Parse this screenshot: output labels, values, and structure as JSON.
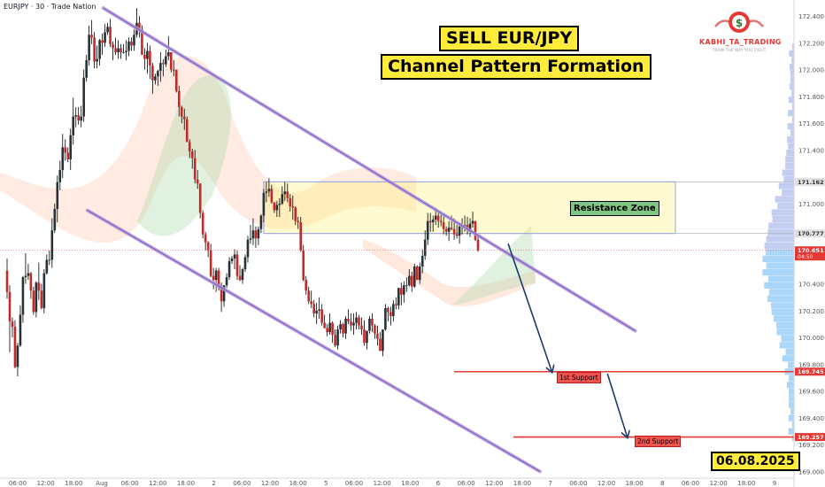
{
  "chart_data": {
    "type": "candlestick",
    "symbol_header": "EURJPY · 30 · Trade Nation",
    "title": "SELL EUR/JPY",
    "subtitle": "Channel Pattern Formation",
    "date_stamp": "06.08.2025",
    "brand": {
      "name": "KABHI_TA_TRADING",
      "tagline": "TRAIN THE WAY YOU FIGHT"
    },
    "y_axis": {
      "ticks": [
        "172.400",
        "172.200",
        "172.000",
        "171.800",
        "171.600",
        "171.400",
        "171.000",
        "170.400",
        "170.200",
        "170.000",
        "169.800",
        "169.600",
        "169.400",
        "169.200",
        "169.000"
      ],
      "ylim": [
        168.95,
        172.52
      ]
    },
    "x_axis": {
      "ticks": [
        "06:00",
        "12:00",
        "18:00",
        "Aug",
        "06:00",
        "12:00",
        "18:00",
        "2",
        "06:00",
        "12:00",
        "18:00",
        "5",
        "06:00",
        "12:00",
        "18:00",
        "6",
        "06:00",
        "12:00",
        "18:00",
        "7",
        "06:00",
        "12:00",
        "18:00",
        "8",
        "06:00",
        "12:00",
        "18:00",
        "9"
      ]
    },
    "price_tags": [
      {
        "value": "171.162",
        "color": "#e0e0e0",
        "text_color": "#333333"
      },
      {
        "value": "170.777",
        "color": "#e0e0e0",
        "text_color": "#333333"
      },
      {
        "value": "170.651",
        "sub": "04:50",
        "color": "#e53935",
        "text_color": "#ffffff"
      },
      {
        "value": "169.745",
        "color": "#e53935",
        "text_color": "#ffffff"
      },
      {
        "value": "169.257",
        "color": "#e53935",
        "text_color": "#ffffff"
      }
    ],
    "annotations": {
      "resistance_zone": {
        "label": "Resistance Zone",
        "top": 171.162,
        "bottom": 170.777
      },
      "support_1": {
        "label": "1st Support",
        "price": 169.745
      },
      "support_2": {
        "label": "2nd Support",
        "price": 169.257
      }
    },
    "channel": {
      "upper": [
        [
          0.13,
          172.46
        ],
        [
          0.8,
          170.05
        ]
      ],
      "lower": [
        [
          0.11,
          170.95
        ],
        [
          0.68,
          169.0
        ]
      ]
    },
    "forecast_path": [
      [
        0.64,
        170.7
      ],
      [
        0.695,
        169.745
      ],
      [
        0.765,
        169.73
      ],
      [
        0.79,
        169.257
      ]
    ],
    "candles": [
      [
        170.5,
        170.59,
        170.29,
        170.34
      ],
      [
        170.34,
        170.39,
        169.89,
        170.12
      ],
      [
        170.12,
        170.15,
        170.0,
        170.08
      ],
      [
        170.08,
        170.13,
        169.77,
        169.78
      ],
      [
        169.78,
        169.96,
        169.71,
        169.94
      ],
      [
        169.94,
        170.24,
        169.93,
        170.17
      ],
      [
        170.17,
        170.46,
        170.11,
        170.45
      ],
      [
        170.45,
        170.63,
        170.4,
        170.46
      ],
      [
        170.46,
        170.55,
        170.43,
        170.48
      ],
      [
        170.48,
        170.49,
        170.29,
        170.35
      ],
      [
        170.35,
        170.38,
        170.17,
        170.19
      ],
      [
        170.19,
        170.42,
        170.15,
        170.41
      ],
      [
        170.41,
        170.56,
        170.28,
        170.35
      ],
      [
        170.35,
        170.4,
        170.21,
        170.22
      ],
      [
        170.22,
        170.51,
        170.18,
        170.48
      ],
      [
        170.48,
        170.62,
        170.47,
        170.58
      ],
      [
        170.58,
        170.65,
        170.54,
        170.58
      ],
      [
        170.58,
        170.89,
        170.52,
        170.8
      ],
      [
        170.8,
        171.0,
        170.78,
        170.96
      ],
      [
        170.96,
        171.21,
        170.86,
        171.16
      ],
      [
        171.16,
        171.32,
        171.1,
        171.25
      ],
      [
        171.25,
        171.52,
        171.19,
        171.42
      ],
      [
        171.42,
        171.48,
        171.32,
        171.38
      ],
      [
        171.38,
        171.42,
        171.31,
        171.33
      ],
      [
        171.33,
        171.56,
        171.25,
        171.51
      ],
      [
        171.51,
        171.79,
        171.44,
        171.65
      ],
      [
        171.65,
        171.72,
        171.57,
        171.66
      ],
      [
        171.66,
        171.72,
        171.59,
        171.62
      ],
      [
        171.62,
        171.73,
        171.57,
        171.65
      ],
      [
        171.65,
        172.0,
        171.61,
        171.94
      ],
      [
        171.94,
        172.11,
        171.91,
        172.07
      ],
      [
        172.07,
        172.33,
        172.03,
        172.26
      ],
      [
        172.26,
        172.37,
        172.19,
        172.24
      ],
      [
        172.24,
        172.28,
        172.01,
        172.06
      ],
      [
        172.06,
        172.18,
        172.01,
        172.08
      ],
      [
        172.08,
        172.23,
        172.03,
        172.22
      ],
      [
        172.22,
        172.27,
        172.11,
        172.2
      ],
      [
        172.2,
        172.34,
        172.17,
        172.28
      ],
      [
        172.28,
        172.35,
        172.26,
        172.32
      ],
      [
        172.32,
        172.38,
        172.17,
        172.19
      ],
      [
        172.19,
        172.21,
        172.07,
        172.16
      ],
      [
        172.16,
        172.24,
        172.11,
        172.13
      ],
      [
        172.13,
        172.22,
        172.08,
        172.16
      ],
      [
        172.16,
        172.19,
        172.08,
        172.13
      ],
      [
        172.13,
        172.19,
        172.12,
        172.13
      ],
      [
        172.13,
        172.22,
        172.07,
        172.14
      ],
      [
        172.14,
        172.24,
        172.1,
        172.21
      ],
      [
        172.21,
        172.24,
        172.14,
        172.18
      ],
      [
        172.18,
        172.3,
        172.14,
        172.26
      ],
      [
        172.26,
        172.46,
        172.24,
        172.35
      ],
      [
        172.35,
        172.4,
        172.24,
        172.3
      ],
      [
        172.3,
        172.33,
        172.11,
        172.11
      ],
      [
        172.11,
        172.16,
        172.0,
        172.08
      ],
      [
        172.08,
        172.2,
        171.97,
        172.14
      ],
      [
        172.14,
        172.18,
        171.93,
        172.03
      ],
      [
        172.03,
        172.05,
        171.82,
        171.92
      ],
      [
        171.92,
        171.97,
        171.89,
        171.95
      ],
      [
        171.95,
        172.0,
        171.88,
        171.99
      ],
      [
        171.99,
        172.13,
        171.91,
        172.05
      ],
      [
        172.05,
        172.08,
        171.95,
        172.04
      ],
      [
        172.04,
        172.15,
        172.02,
        172.1
      ],
      [
        172.1,
        172.25,
        172.07,
        172.13
      ],
      [
        172.13,
        172.13,
        171.98,
        172.0
      ],
      [
        172.0,
        172.07,
        171.95,
        172.0
      ],
      [
        172.0,
        172.0,
        171.83,
        171.84
      ],
      [
        171.84,
        171.88,
        171.65,
        171.72
      ],
      [
        171.72,
        171.73,
        171.6,
        171.65
      ],
      [
        171.65,
        171.71,
        171.55,
        171.63
      ],
      [
        171.63,
        171.65,
        171.46,
        171.46
      ],
      [
        171.46,
        171.48,
        171.34,
        171.39
      ],
      [
        171.39,
        171.41,
        171.26,
        171.34
      ],
      [
        171.34,
        171.4,
        171.15,
        171.18
      ],
      [
        171.18,
        171.25,
        171.11,
        171.15
      ],
      [
        171.15,
        171.15,
        170.89,
        170.93
      ],
      [
        170.93,
        170.95,
        170.74,
        170.77
      ],
      [
        170.77,
        170.79,
        170.65,
        170.71
      ],
      [
        170.71,
        170.72,
        170.6,
        170.65
      ],
      [
        170.65,
        170.7,
        170.45,
        170.46
      ],
      [
        170.46,
        170.52,
        170.36,
        170.43
      ],
      [
        170.43,
        170.52,
        170.34,
        170.5
      ],
      [
        170.5,
        170.52,
        170.35,
        170.37
      ],
      [
        170.37,
        170.41,
        170.19,
        170.27
      ],
      [
        170.27,
        170.39,
        170.23,
        170.39
      ],
      [
        170.39,
        170.48,
        170.37,
        170.45
      ],
      [
        170.45,
        170.6,
        170.43,
        170.57
      ],
      [
        170.57,
        170.61,
        170.55,
        170.59
      ],
      [
        170.59,
        170.66,
        170.51,
        170.62
      ],
      [
        170.62,
        170.65,
        170.43,
        170.46
      ],
      [
        170.46,
        170.54,
        170.42,
        170.43
      ],
      [
        170.43,
        170.52,
        170.4,
        170.51
      ],
      [
        170.51,
        170.62,
        170.49,
        170.6
      ],
      [
        170.6,
        170.76,
        170.56,
        170.73
      ],
      [
        170.73,
        170.84,
        170.7,
        170.74
      ],
      [
        170.74,
        170.89,
        170.69,
        170.8
      ],
      [
        170.8,
        170.83,
        170.67,
        170.74
      ],
      [
        170.74,
        170.83,
        170.69,
        170.81
      ],
      [
        170.81,
        170.92,
        170.78,
        170.91
      ],
      [
        170.91,
        171.11,
        170.86,
        171.08
      ],
      [
        171.08,
        171.16,
        171.01,
        171.09
      ],
      [
        171.09,
        171.19,
        171.05,
        171.11
      ],
      [
        171.11,
        171.14,
        171.0,
        171.01
      ],
      [
        171.01,
        171.01,
        170.93,
        170.95
      ],
      [
        170.95,
        171.02,
        170.9,
        170.99
      ],
      [
        170.99,
        171.04,
        170.9,
        171.0
      ],
      [
        171.0,
        171.13,
        170.99,
        171.07
      ],
      [
        171.07,
        171.16,
        171.02,
        171.09
      ],
      [
        171.09,
        171.15,
        171.01,
        171.04
      ],
      [
        171.04,
        171.07,
        170.94,
        170.98
      ],
      [
        170.98,
        171.06,
        170.88,
        170.97
      ],
      [
        170.97,
        170.98,
        170.84,
        170.87
      ],
      [
        170.87,
        170.9,
        170.81,
        170.86
      ],
      [
        170.86,
        170.9,
        170.64,
        170.65
      ],
      [
        170.65,
        170.69,
        170.42,
        170.43
      ],
      [
        170.43,
        170.46,
        170.32,
        170.35
      ],
      [
        170.35,
        170.38,
        170.25,
        170.27
      ],
      [
        170.27,
        170.35,
        170.22,
        170.25
      ],
      [
        170.25,
        170.28,
        170.15,
        170.18
      ],
      [
        170.18,
        170.26,
        170.1,
        170.2
      ],
      [
        170.2,
        170.3,
        170.14,
        170.21
      ],
      [
        170.21,
        170.25,
        170.09,
        170.11
      ],
      [
        170.11,
        170.17,
        170.07,
        170.07
      ],
      [
        170.07,
        170.1,
        170.01,
        170.04
      ],
      [
        170.04,
        170.18,
        170.02,
        170.11
      ],
      [
        170.11,
        170.12,
        169.96,
        170.02
      ],
      [
        170.02,
        170.06,
        169.93,
        169.94
      ],
      [
        169.94,
        170.09,
        169.91,
        170.06
      ],
      [
        170.06,
        170.13,
        170.03,
        170.1
      ],
      [
        170.1,
        170.11,
        170.0,
        170.03
      ],
      [
        170.03,
        170.16,
        169.99,
        170.14
      ],
      [
        170.14,
        170.21,
        170.1,
        170.12
      ],
      [
        170.12,
        170.18,
        170.05,
        170.09
      ],
      [
        170.09,
        170.18,
        170.02,
        170.11
      ],
      [
        170.11,
        170.19,
        170.06,
        170.15
      ],
      [
        170.15,
        170.17,
        170.06,
        170.09
      ],
      [
        170.09,
        170.15,
        170.02,
        170.06
      ],
      [
        170.06,
        170.13,
        169.94,
        169.96
      ],
      [
        169.96,
        170.05,
        169.91,
        170.05
      ],
      [
        170.05,
        170.16,
        170.03,
        170.14
      ],
      [
        170.14,
        170.18,
        170.04,
        170.09
      ],
      [
        170.09,
        170.1,
        169.99,
        170.03
      ],
      [
        170.03,
        170.09,
        169.94,
        169.99
      ],
      [
        169.99,
        170.04,
        169.9,
        169.9
      ],
      [
        169.9,
        170.06,
        169.86,
        170.06
      ],
      [
        170.06,
        170.25,
        170.05,
        170.22
      ],
      [
        170.22,
        170.23,
        170.12,
        170.19
      ],
      [
        170.19,
        170.23,
        170.09,
        170.16
      ],
      [
        170.16,
        170.28,
        170.12,
        170.25
      ],
      [
        170.25,
        170.3,
        170.21,
        170.24
      ],
      [
        170.24,
        170.37,
        170.21,
        170.37
      ],
      [
        170.37,
        170.41,
        170.24,
        170.32
      ],
      [
        170.32,
        170.42,
        170.26,
        170.39
      ],
      [
        170.39,
        170.45,
        170.34,
        170.39
      ],
      [
        170.39,
        170.51,
        170.38,
        170.46
      ],
      [
        170.46,
        170.49,
        170.34,
        170.38
      ],
      [
        170.38,
        170.55,
        170.37,
        170.53
      ],
      [
        170.53,
        170.54,
        170.43,
        170.43
      ],
      [
        170.43,
        170.56,
        170.4,
        170.53
      ],
      [
        170.53,
        170.66,
        170.48,
        170.61
      ],
      [
        170.61,
        170.8,
        170.58,
        170.73
      ],
      [
        170.73,
        170.93,
        170.69,
        170.87
      ],
      [
        170.87,
        170.93,
        170.79,
        170.86
      ],
      [
        170.86,
        170.91,
        170.79,
        170.88
      ],
      [
        170.88,
        170.97,
        170.84,
        170.91
      ],
      [
        170.91,
        170.94,
        170.82,
        170.87
      ],
      [
        170.87,
        170.93,
        170.83,
        170.86
      ],
      [
        170.86,
        170.91,
        170.77,
        170.81
      ],
      [
        170.81,
        170.83,
        170.76,
        170.79
      ],
      [
        170.79,
        170.87,
        170.72,
        170.82
      ],
      [
        170.82,
        170.91,
        170.8,
        170.81
      ],
      [
        170.81,
        170.89,
        170.73,
        170.77
      ],
      [
        170.77,
        170.84,
        170.74,
        170.76
      ],
      [
        170.76,
        170.86,
        170.7,
        170.83
      ],
      [
        170.83,
        170.89,
        170.77,
        170.83
      ],
      [
        170.83,
        170.91,
        170.79,
        170.84
      ],
      [
        170.84,
        170.9,
        170.77,
        170.8
      ],
      [
        170.8,
        170.89,
        170.75,
        170.85
      ],
      [
        170.85,
        170.94,
        170.82,
        170.87
      ],
      [
        170.87,
        170.87,
        170.72,
        170.73
      ],
      [
        170.73,
        170.77,
        170.64,
        170.65
      ]
    ]
  }
}
